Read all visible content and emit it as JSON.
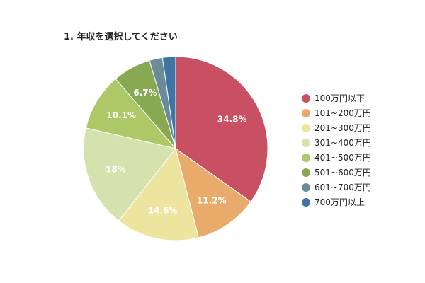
{
  "chart_data": {
    "type": "pie",
    "title": "1. 年収を選択してください",
    "categories": [
      "100万円以下",
      "101~200万円",
      "201~300万円",
      "301~400万円",
      "401~500万円",
      "501~600万円",
      "601~700万円",
      "700万円以上"
    ],
    "values": [
      34.8,
      11.2,
      14.6,
      18,
      10.1,
      6.7,
      2.3,
      2.3
    ],
    "data_labels": [
      "34.8%",
      "11.2%",
      "14.6%",
      "18%",
      "10.1%",
      "6.7%",
      "",
      ""
    ],
    "colors": [
      "#c94f62",
      "#e8ab6c",
      "#ede4a0",
      "#d5e2ae",
      "#adc867",
      "#88a852",
      "#6b8b99",
      "#3f74a3"
    ],
    "legend_position": "right"
  }
}
